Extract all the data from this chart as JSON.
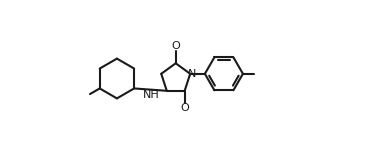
{
  "background_color": "#ffffff",
  "line_color": "#1a1a1a",
  "line_width": 1.5,
  "font_size_label": 8.0,
  "figsize": [
    3.67,
    1.57
  ],
  "dpi": 100,
  "xlim": [
    -0.05,
    1.05
  ],
  "ylim": [
    0.05,
    0.95
  ]
}
